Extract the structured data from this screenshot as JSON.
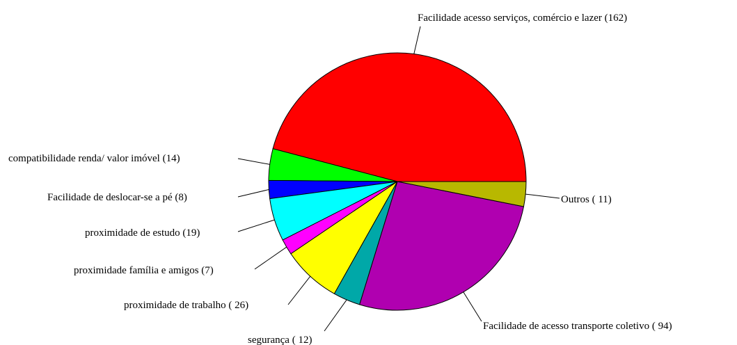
{
  "chart_data": {
    "type": "pie",
    "start_angle_deg": 0,
    "direction": "counterclockwise",
    "slices": [
      {
        "label": "Facilidade acesso serviços, comércio e lazer (162)",
        "value": 162,
        "color": "#ff0000"
      },
      {
        "label": "compatibilidade  renda/ valor imóvel (14)",
        "value": 14,
        "color": "#00ff00"
      },
      {
        "label": "Facilidade de deslocar-se a pé (8)",
        "value": 8,
        "color": "#0000ff"
      },
      {
        "label": "proximidade de estudo (19)",
        "value": 19,
        "color": "#00ffff"
      },
      {
        "label": "proximidade família e amigos (7)",
        "value": 7,
        "color": "#ff00ff"
      },
      {
        "label": "proximidade de trabalho ( 26)",
        "value": 26,
        "color": "#ffff00"
      },
      {
        "label": "segurança ( 12)",
        "value": 12,
        "color": "#00a8a8"
      },
      {
        "label": "Facilidade de acesso transporte coletivo ( 94)",
        "value": 94,
        "color": "#b000b0"
      },
      {
        "label": "Outros ( 11)",
        "value": 11,
        "color": "#b8b800"
      }
    ]
  }
}
